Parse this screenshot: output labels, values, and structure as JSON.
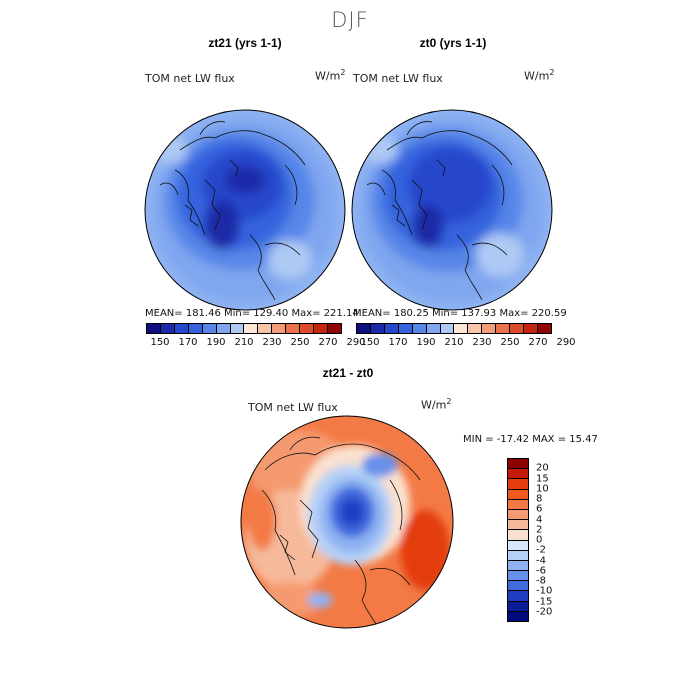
{
  "title": "DJF",
  "panels": [
    {
      "title": "zt21 (yrs 1-1)",
      "field": "TOM net LW flux",
      "units_base": "W/m",
      "units_exp": "2",
      "stats": "MEAN= 181.46   Min= 129.40   Max= 221.14"
    },
    {
      "title": "zt0 (yrs 1-1)",
      "field": "TOM net LW flux",
      "units_base": "W/m",
      "units_exp": "2",
      "stats": "MEAN= 180.25   Min= 137.93   Max= 220.59"
    }
  ],
  "diff_panel": {
    "title": "zt21 - zt0",
    "field": "TOM net LW flux",
    "units_base": "W/m",
    "units_exp": "2",
    "stats": "MIN = -17.42  MAX =  15.47"
  },
  "abs_colorbar": {
    "labels": [
      "150",
      "170",
      "190",
      "210",
      "230",
      "250",
      "270",
      "290"
    ],
    "colors": [
      "#0d0f80",
      "#1a2aa8",
      "#2547cc",
      "#3563dd",
      "#5786e8",
      "#7fa6ef",
      "#aec9f4",
      "#fbe6d7",
      "#f7c6a8",
      "#f29c79",
      "#eb704c",
      "#de4a2b",
      "#c42511",
      "#8f0505"
    ]
  },
  "diff_colorbar": {
    "labels": [
      "20",
      "15",
      "10",
      "8",
      "6",
      "4",
      "2",
      "0",
      "-2",
      "-4",
      "-6",
      "-8",
      "-10",
      "-15",
      "-20"
    ],
    "colors": [
      "#8b0000",
      "#c41a07",
      "#e43d10",
      "#f05a20",
      "#f37a45",
      "#f59a70",
      "#f6b99a",
      "#fae1cf",
      "#d8e8fb",
      "#b5d0f7",
      "#8fb3f2",
      "#6791ea",
      "#3f6bde",
      "#1e3fc2",
      "#0b1d96",
      "#000a7a"
    ]
  }
}
